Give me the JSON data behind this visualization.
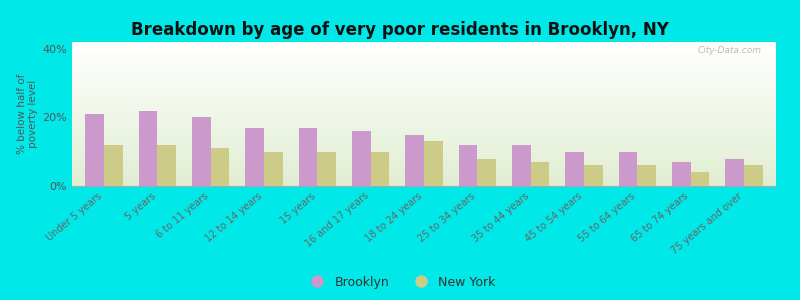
{
  "categories": [
    "Under 5 years",
    "5 years",
    "6 to 11 years",
    "12 to 14 years",
    "15 years",
    "16 and 17 years",
    "18 to 24 years",
    "25 to 34 years",
    "35 to 44 years",
    "45 to 54 years",
    "55 to 64 years",
    "65 to 74 years",
    "75 years and over"
  ],
  "brooklyn": [
    21.0,
    22.0,
    20.0,
    17.0,
    17.0,
    16.0,
    15.0,
    12.0,
    12.0,
    10.0,
    10.0,
    7.0,
    8.0
  ],
  "newyork": [
    12.0,
    12.0,
    11.0,
    10.0,
    10.0,
    10.0,
    13.0,
    8.0,
    7.0,
    6.0,
    6.0,
    4.0,
    6.0
  ],
  "brooklyn_color": "#cc99cc",
  "newyork_color": "#cccc88",
  "title": "Breakdown by age of very poor residents in Brooklyn, NY",
  "ylabel": "% below half of\npoverty level",
  "ylim": [
    0,
    42
  ],
  "yticks": [
    0,
    20,
    40
  ],
  "ytick_labels": [
    "0%",
    "20%",
    "40%"
  ],
  "background_outer": "#00e8e8",
  "title_fontsize": 12,
  "legend_brooklyn": "Brooklyn",
  "legend_newyork": "New York",
  "bar_width": 0.35,
  "watermark": "City-Data.com"
}
